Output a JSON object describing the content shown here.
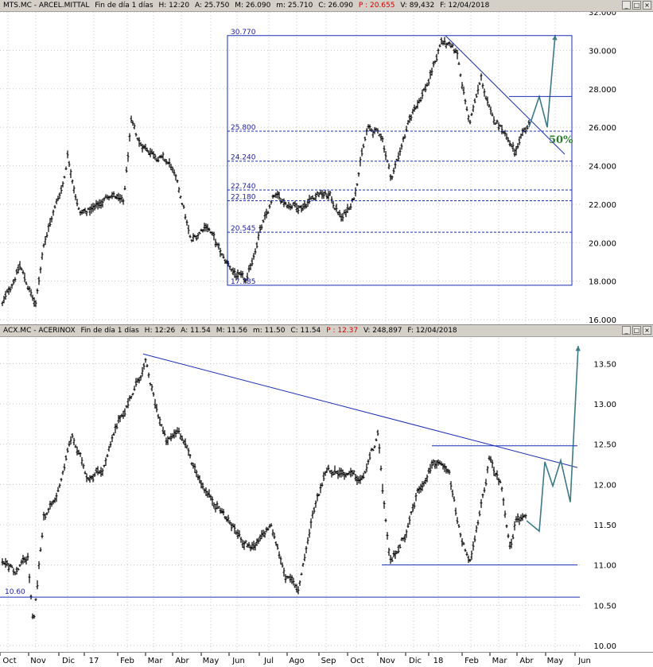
{
  "chart_data": [
    {
      "type": "line",
      "header": {
        "symbol": "MTS.MC - ARCEL.MITTAL",
        "period": "Fin de día 1 días",
        "hour": "H: 12:20",
        "open": "A: 25.750",
        "max": "M: 26.090",
        "min": "m: 25.710",
        "close": "C: 26.090",
        "prev": "P : 20.655",
        "volume": "V: 89,432",
        "date": "F: 12/04/2018"
      },
      "y_ticks": [
        "16.000",
        "18.000",
        "20.000",
        "22.000",
        "24.000",
        "26.000",
        "28.000",
        "30.000",
        "32.000"
      ],
      "ylim": [
        16.0,
        32.0
      ],
      "fib_levels": [
        {
          "value": 30.77,
          "label": "30.770"
        },
        {
          "value": 25.8,
          "label": "25.800"
        },
        {
          "value": 24.24,
          "label": "24.240"
        },
        {
          "value": 22.74,
          "label": "22.740"
        },
        {
          "value": 22.18,
          "label": "22.180"
        },
        {
          "value": 20.545,
          "label": "20.545"
        },
        {
          "value": 17.785,
          "label": "17.785"
        }
      ],
      "extra_levels": [
        27.6
      ],
      "annotation": "50%",
      "price_keypoints": [
        [
          0,
          16.5
        ],
        [
          25,
          18.8
        ],
        [
          45,
          16.7
        ],
        [
          55,
          20.0
        ],
        [
          80,
          23.2
        ],
        [
          85,
          24.6
        ],
        [
          100,
          21.5
        ],
        [
          120,
          21.8
        ],
        [
          140,
          22.6
        ],
        [
          155,
          22.0
        ],
        [
          165,
          26.2
        ],
        [
          175,
          25.2
        ],
        [
          195,
          24.6
        ],
        [
          215,
          24.0
        ],
        [
          230,
          22.0
        ],
        [
          240,
          20.0
        ],
        [
          260,
          21.0
        ],
        [
          280,
          19.2
        ],
        [
          298,
          18.3
        ],
        [
          310,
          17.9
        ],
        [
          325,
          20.4
        ],
        [
          345,
          22.4
        ],
        [
          365,
          22.0
        ],
        [
          380,
          21.9
        ],
        [
          400,
          22.6
        ],
        [
          415,
          22.4
        ],
        [
          430,
          21.2
        ],
        [
          445,
          22.4
        ],
        [
          455,
          24.6
        ],
        [
          462,
          25.9
        ],
        [
          480,
          25.6
        ],
        [
          492,
          23.3
        ],
        [
          505,
          25.1
        ],
        [
          520,
          26.9
        ],
        [
          540,
          28.5
        ],
        [
          555,
          30.5
        ],
        [
          575,
          29.8
        ],
        [
          590,
          26.2
        ],
        [
          605,
          28.5
        ],
        [
          618,
          26.5
        ],
        [
          632,
          26.0
        ],
        [
          648,
          24.6
        ],
        [
          665,
          26.2
        ]
      ],
      "projection": [
        [
          665,
          26.0
        ],
        [
          678,
          27.6
        ],
        [
          688,
          26.0
        ],
        [
          698,
          30.8
        ]
      ],
      "trendline": [
        [
          560,
          30.77
        ],
        [
          710,
          24.6
        ]
      ]
    },
    {
      "type": "line",
      "header": {
        "symbol": "ACX.MC - ACERINOX",
        "period": "Fin de día 1 días",
        "hour": "H: 12:26",
        "open": "A: 11.54",
        "max": "M: 11.56",
        "min": "m: 11.50",
        "close": "C: 11.54",
        "prev": "P : 12.37",
        "volume": "V: 248,897",
        "date": "F: 12/04/2018"
      },
      "y_ticks": [
        "10.00",
        "10.50",
        "11.00",
        "11.50",
        "12.00",
        "12.50",
        "13.00",
        "13.50"
      ],
      "ylim": [
        9.95,
        13.82
      ],
      "support_label": "10.60",
      "levels": [
        10.6,
        11.0,
        12.48
      ],
      "price_keypoints": [
        [
          0,
          11.1
        ],
        [
          20,
          10.9
        ],
        [
          35,
          11.1
        ],
        [
          42,
          10.2
        ],
        [
          55,
          11.6
        ],
        [
          70,
          11.8
        ],
        [
          90,
          12.6
        ],
        [
          110,
          12.1
        ],
        [
          130,
          12.2
        ],
        [
          150,
          12.8
        ],
        [
          165,
          13.1
        ],
        [
          183,
          13.5
        ],
        [
          195,
          13.0
        ],
        [
          210,
          12.5
        ],
        [
          225,
          12.7
        ],
        [
          240,
          12.3
        ],
        [
          260,
          11.9
        ],
        [
          280,
          11.65
        ],
        [
          305,
          11.3
        ],
        [
          320,
          11.2
        ],
        [
          340,
          11.5
        ],
        [
          360,
          10.85
        ],
        [
          375,
          10.7
        ],
        [
          395,
          11.7
        ],
        [
          410,
          12.2
        ],
        [
          430,
          12.15
        ],
        [
          455,
          12.05
        ],
        [
          475,
          12.6
        ],
        [
          490,
          11.0
        ],
        [
          510,
          11.4
        ],
        [
          525,
          11.9
        ],
        [
          545,
          12.3
        ],
        [
          565,
          12.1
        ],
        [
          580,
          11.3
        ],
        [
          592,
          11.05
        ],
        [
          603,
          11.6
        ],
        [
          615,
          12.3
        ],
        [
          630,
          12.0
        ],
        [
          642,
          11.2
        ],
        [
          650,
          11.6
        ],
        [
          662,
          11.55
        ]
      ],
      "projection": [
        [
          662,
          11.55
        ],
        [
          678,
          11.42
        ],
        [
          685,
          12.28
        ],
        [
          695,
          11.98
        ],
        [
          705,
          12.3
        ],
        [
          717,
          11.78
        ],
        [
          727,
          13.72
        ]
      ],
      "trendline": [
        [
          180,
          13.62
        ],
        [
          726,
          12.21
        ]
      ]
    }
  ],
  "x_axis": {
    "labels": [
      "Oct",
      "Nov",
      "Dic",
      "17",
      "Feb",
      "Mar",
      "Abr",
      "May",
      "Jun",
      "Jul",
      "Ago",
      "Sep",
      "Oct",
      "Nov",
      "Dic",
      "18",
      "Feb",
      "Mar",
      "Abr",
      "May",
      "Jun"
    ]
  },
  "colors": {
    "price": "#000000",
    "lines": "#1a2fb5",
    "projection": "#3d7a86",
    "annotation": "#2e7d32",
    "header_bg": "#d4d0c8"
  }
}
